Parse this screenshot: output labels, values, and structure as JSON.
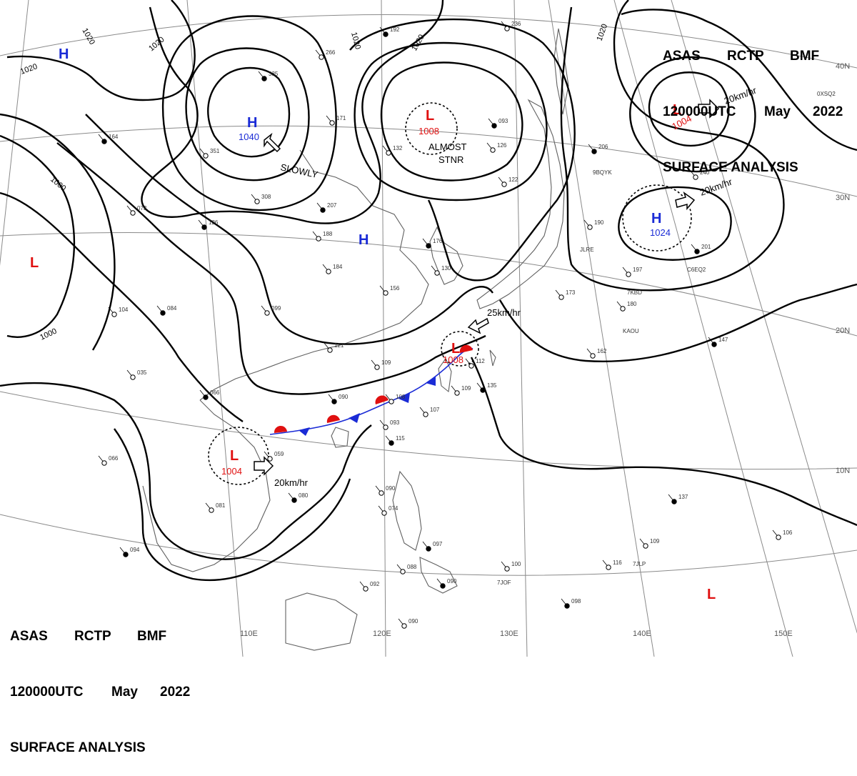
{
  "header": {
    "line1": [
      "ASAS",
      "RCTP",
      "BMF"
    ],
    "line2": [
      "120000UTC",
      "May",
      "2022"
    ],
    "line3": "SURFACE ANALYSIS"
  },
  "colors": {
    "high": "#1a2bd6",
    "low": "#e01010",
    "cold_front": "#1a2bd6",
    "warm_front": "#e01010",
    "isobar": "#000000",
    "grid": "#8a8a8a",
    "coast": "#606060"
  },
  "longitude_labels": [
    "110E",
    "120E",
    "130E",
    "140E",
    "150E"
  ],
  "latitude_labels": [
    "40N",
    "30N",
    "20N",
    "10N"
  ],
  "isobar_labels": [
    "1020",
    "1020",
    "1020",
    "1020",
    "1020",
    "1020",
    "1000",
    "1000"
  ],
  "pressure_centers": [
    {
      "type": "H",
      "value": "",
      "motion": ""
    },
    {
      "type": "H",
      "value": "1040",
      "motion": "SLOWLY"
    },
    {
      "type": "L",
      "value": "1008",
      "motion": "ALMOST STNR"
    },
    {
      "type": "H",
      "value": "",
      "motion": ""
    },
    {
      "type": "L",
      "value": "1004",
      "motion": "20km/hr"
    },
    {
      "type": "H",
      "value": "1024",
      "motion": "20km/hr"
    },
    {
      "type": "L",
      "value": "",
      "motion": ""
    },
    {
      "type": "L",
      "value": "1008",
      "motion": "25km/hr"
    },
    {
      "type": "L",
      "value": "1004",
      "motion": "20km/hr"
    },
    {
      "type": "L",
      "value": "",
      "motion": ""
    }
  ],
  "station_labels": [
    "ALMOST",
    "STNR",
    "JLRE",
    "C6EQ2",
    "7KBD",
    "KAOU",
    "9BQYK",
    "7JLP",
    "7JOF",
    "0XSQ2"
  ],
  "station_obs": [
    "192",
    "236",
    "266",
    "335",
    "171",
    "132",
    "093",
    "126",
    "122",
    "164",
    "351",
    "308",
    "207",
    "188",
    "184",
    "176",
    "130",
    "073",
    "126",
    "156",
    "099",
    "084",
    "104",
    "035",
    "066",
    "121",
    "109",
    "090",
    "108",
    "093",
    "115",
    "107",
    "109",
    "135",
    "112",
    "059",
    "080",
    "081",
    "066",
    "094",
    "090",
    "074",
    "097",
    "088",
    "092",
    "090",
    "090",
    "100",
    "098",
    "116",
    "109",
    "137",
    "106",
    "162",
    "147",
    "180",
    "197",
    "201",
    "190",
    "240",
    "206",
    "173"
  ]
}
